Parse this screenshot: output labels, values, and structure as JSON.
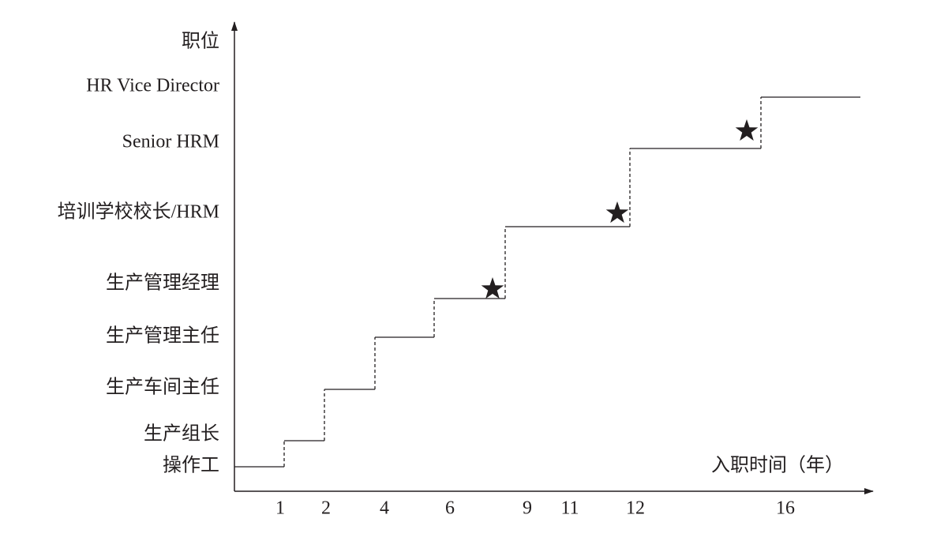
{
  "y_axis_label": "职位",
  "x_axis_label": "入职时间（年）",
  "positions": [
    "HR Vice Director",
    "Senior HRM",
    "培训学校校长/HRM",
    "生产管理经理",
    "生产管理主任",
    "生产车间主任",
    "生产组长",
    "操作工"
  ],
  "years": [
    "1",
    "2",
    "4",
    "6",
    "9",
    "11",
    "12",
    "16"
  ]
}
